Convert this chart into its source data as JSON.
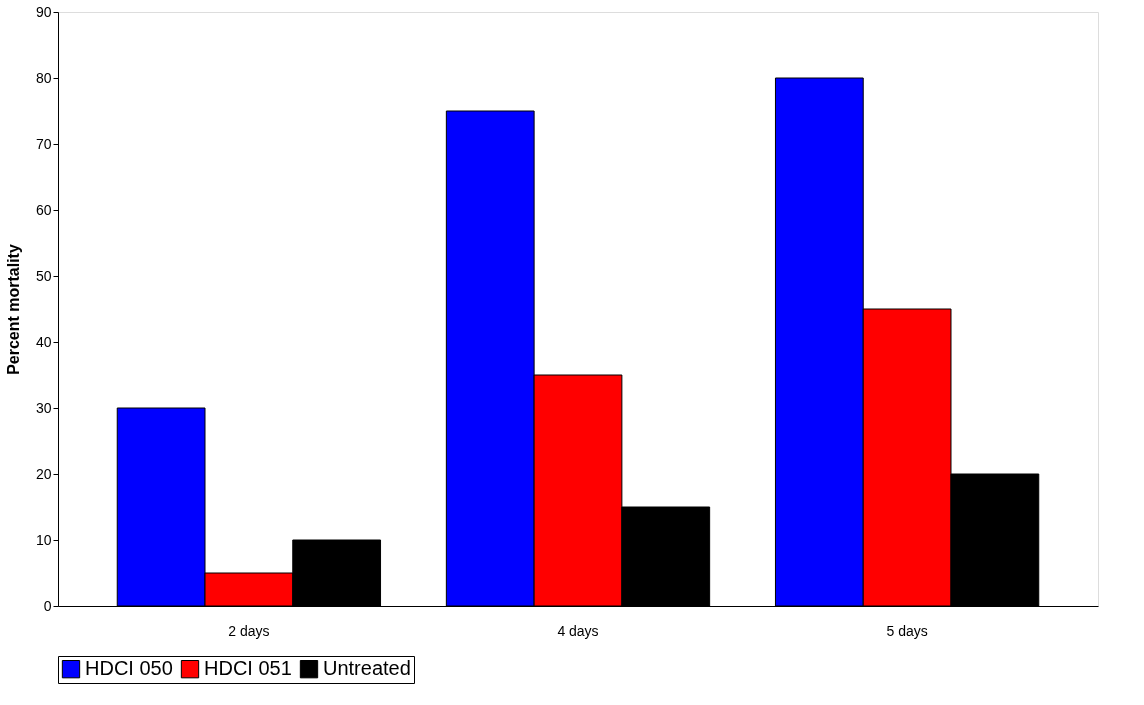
{
  "chart_data": {
    "type": "bar",
    "ylabel": "Percent mortality",
    "categories": [
      "2 days",
      "4 days",
      "5 days"
    ],
    "series": [
      {
        "name": "HDCI 050",
        "color": "#0000ff",
        "values": [
          30,
          75,
          80
        ]
      },
      {
        "name": "HDCI 051",
        "color": "#ff0000",
        "values": [
          5,
          35,
          45
        ]
      },
      {
        "name": "Untreated",
        "color": "#000000",
        "values": [
          10,
          15,
          20
        ]
      }
    ],
    "ylim": [
      0,
      90
    ],
    "yticks": [
      0,
      10,
      20,
      30,
      40,
      50,
      60,
      70,
      80,
      90
    ],
    "grid": false,
    "legend": "bottom"
  }
}
